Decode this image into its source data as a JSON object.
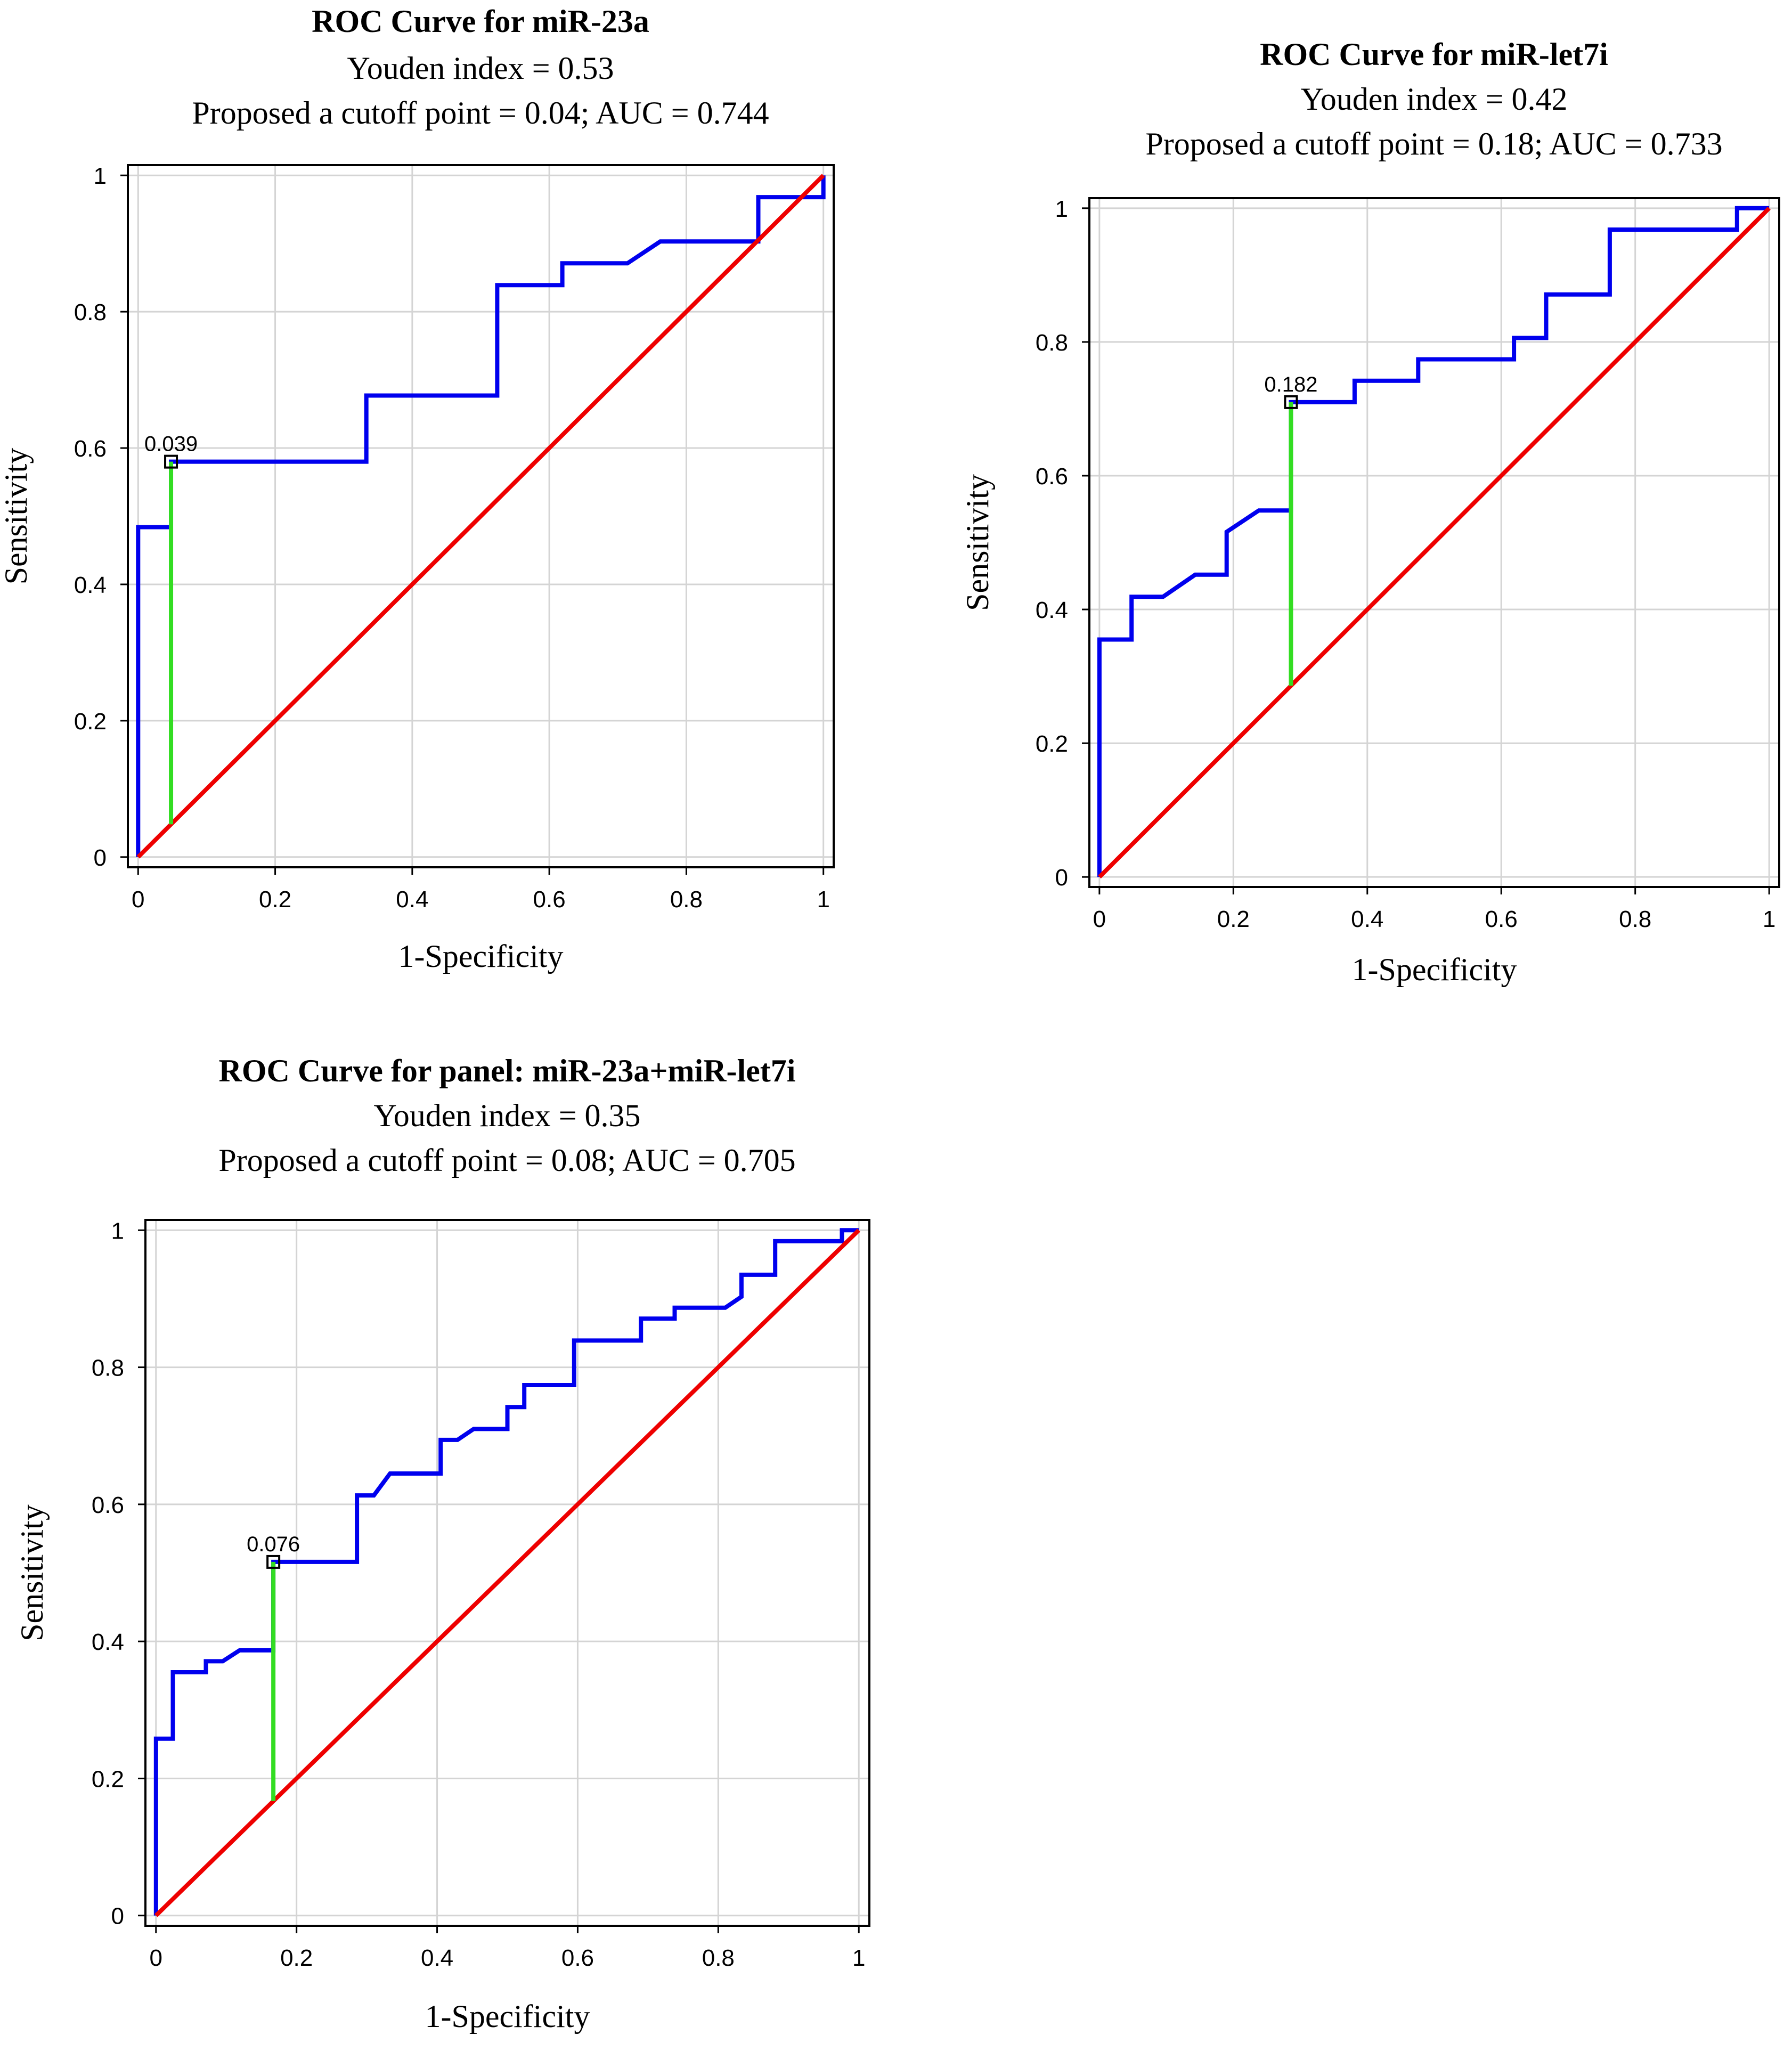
{
  "chart_data": [
    {
      "type": "line",
      "title": "ROC Curve for miR-23a",
      "subtitle1": "Youden index = 0.53",
      "subtitle2": "Proposed a cutoff point = 0.04; AUC = 0.744",
      "xlabel": "1-Specificity",
      "ylabel": "Sensitivity",
      "xlim": [
        0,
        1
      ],
      "ylim": [
        0,
        1
      ],
      "grid": true,
      "xticks": [
        "0",
        "0.2",
        "0.4",
        "0.6",
        "0.8",
        "1"
      ],
      "yticks": [
        "0",
        "0.2",
        "0.4",
        "0.6",
        "0.8",
        "1"
      ],
      "annotation": "0.039",
      "cutoff": {
        "x": 0.048,
        "y": 0.58
      },
      "series": [
        {
          "color": "#0000ee",
          "x": [
            0,
            0,
            0.048,
            0.048,
            0.333,
            0.333,
            0.524,
            0.524,
            0.619,
            0.619,
            0.714,
            0.762,
            0.905,
            0.905,
            1,
            1
          ],
          "y": [
            0,
            0.484,
            0.484,
            0.58,
            0.58,
            0.677,
            0.677,
            0.839,
            0.839,
            0.871,
            0.871,
            0.903,
            0.903,
            0.968,
            0.968,
            1
          ]
        },
        {
          "color": "#ee0000",
          "x": [
            0,
            1
          ],
          "y": [
            0,
            1
          ]
        }
      ]
    },
    {
      "type": "line",
      "title": "ROC Curve for miR-let7i",
      "subtitle1": "Youden index = 0.42",
      "subtitle2": "Proposed a cutoff point = 0.18; AUC = 0.733",
      "xlabel": "1-Specificity",
      "ylabel": "Sensitivity",
      "xlim": [
        0,
        1
      ],
      "ylim": [
        0,
        1
      ],
      "grid": true,
      "xticks": [
        "0",
        "0.2",
        "0.4",
        "0.6",
        "0.8",
        "1"
      ],
      "yticks": [
        "0",
        "0.2",
        "0.4",
        "0.6",
        "0.8",
        "1"
      ],
      "annotation": "0.182",
      "cutoff": {
        "x": 0.286,
        "y": 0.71
      },
      "series": [
        {
          "color": "#0000ee",
          "x": [
            0,
            0,
            0.048,
            0.048,
            0.095,
            0.143,
            0.19,
            0.19,
            0.238,
            0.286,
            0.286,
            0.381,
            0.381,
            0.476,
            0.476,
            0.619,
            0.619,
            0.667,
            0.667,
            0.762,
            0.762,
            0.952,
            0.952,
            1
          ],
          "y": [
            0,
            0.355,
            0.355,
            0.419,
            0.419,
            0.452,
            0.452,
            0.516,
            0.548,
            0.548,
            0.71,
            0.71,
            0.742,
            0.742,
            0.774,
            0.774,
            0.806,
            0.806,
            0.871,
            0.871,
            0.968,
            0.968,
            1,
            1
          ]
        },
        {
          "color": "#ee0000",
          "x": [
            0,
            1
          ],
          "y": [
            0,
            1
          ]
        }
      ]
    },
    {
      "type": "line",
      "title": "ROC Curve for panel: miR-23a+miR-let7i",
      "subtitle1": "Youden index = 0.35",
      "subtitle2": "Proposed a cutoff point = 0.08; AUC = 0.705",
      "xlabel": "1-Specificity",
      "ylabel": "Sensitivity",
      "xlim": [
        0,
        1
      ],
      "ylim": [
        0,
        1
      ],
      "grid": true,
      "xticks": [
        "0",
        "0.2",
        "0.4",
        "0.6",
        "0.8",
        "1"
      ],
      "yticks": [
        "0",
        "0.2",
        "0.4",
        "0.6",
        "0.8",
        "1"
      ],
      "annotation": "0.076",
      "cutoff": {
        "x": 0.167,
        "y": 0.516
      },
      "series": [
        {
          "color": "#0000ee",
          "x": [
            0,
            0,
            0.024,
            0.024,
            0.071,
            0.071,
            0.095,
            0.119,
            0.167,
            0.167,
            0.286,
            0.286,
            0.31,
            0.333,
            0.405,
            0.405,
            0.429,
            0.452,
            0.5,
            0.5,
            0.524,
            0.524,
            0.595,
            0.595,
            0.69,
            0.69,
            0.738,
            0.738,
            0.81,
            0.833,
            0.833,
            0.881,
            0.881,
            0.976,
            0.976,
            1
          ],
          "y": [
            0,
            0.258,
            0.258,
            0.355,
            0.355,
            0.371,
            0.371,
            0.387,
            0.387,
            0.516,
            0.516,
            0.613,
            0.613,
            0.645,
            0.645,
            0.694,
            0.694,
            0.71,
            0.71,
            0.742,
            0.742,
            0.774,
            0.774,
            0.839,
            0.839,
            0.871,
            0.871,
            0.887,
            0.887,
            0.903,
            0.935,
            0.935,
            0.984,
            0.984,
            1,
            1
          ]
        },
        {
          "color": "#ee0000",
          "x": [
            0,
            1
          ],
          "y": [
            0,
            1
          ]
        }
      ]
    }
  ]
}
